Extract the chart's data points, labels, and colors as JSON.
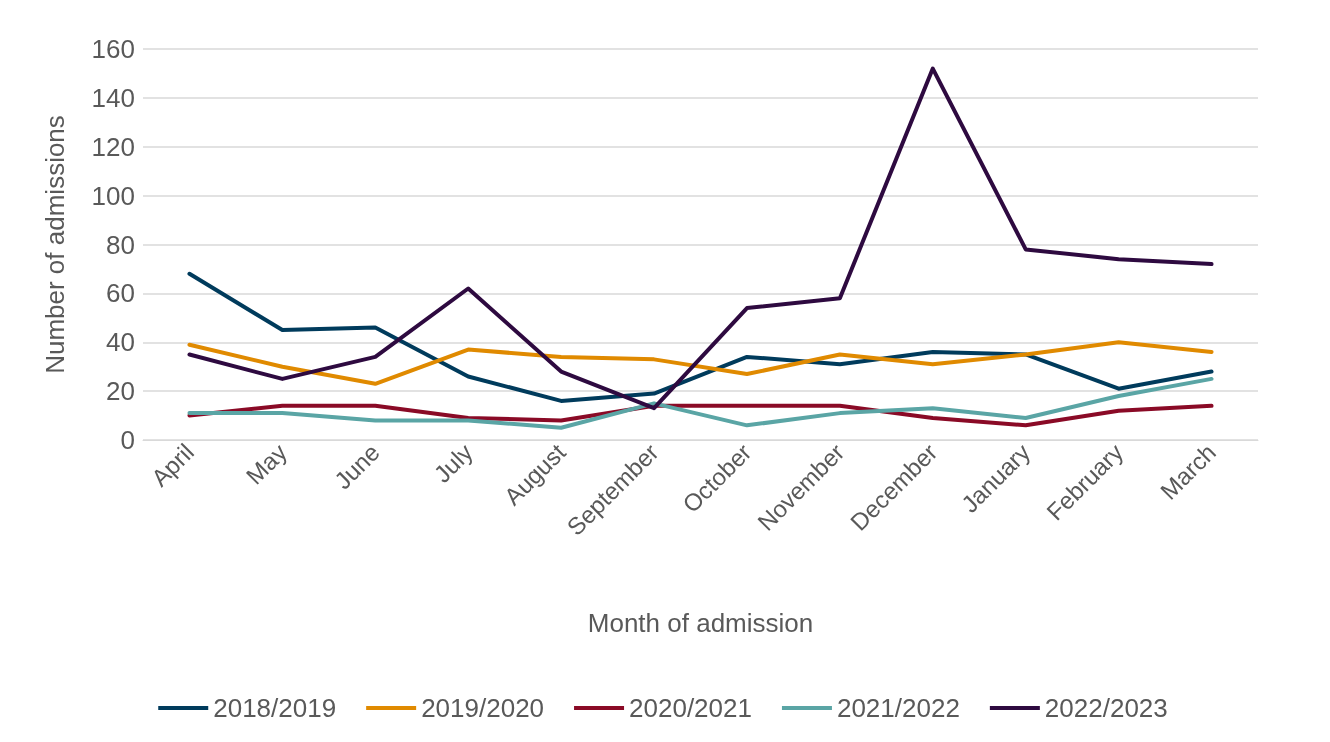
{
  "chart_data": {
    "type": "line",
    "xlabel": "Month of admission",
    "ylabel": "Number of admissions",
    "categories": [
      "April",
      "May",
      "June",
      "July",
      "August",
      "September",
      "October",
      "November",
      "December",
      "January",
      "February",
      "March"
    ],
    "series": [
      {
        "name": "2018/2019",
        "color": "#003b5c",
        "values": [
          68,
          45,
          46,
          26,
          16,
          19,
          34,
          31,
          36,
          35,
          21,
          28
        ]
      },
      {
        "name": "2019/2020",
        "color": "#e08a00",
        "values": [
          39,
          30,
          23,
          37,
          34,
          33,
          27,
          35,
          31,
          35,
          40,
          36
        ]
      },
      {
        "name": "2020/2021",
        "color": "#8a0a26",
        "values": [
          10,
          14,
          14,
          9,
          8,
          14,
          14,
          14,
          9,
          6,
          12,
          14
        ]
      },
      {
        "name": "2021/2022",
        "color": "#5aa5a5",
        "values": [
          11,
          11,
          8,
          8,
          5,
          15,
          6,
          11,
          13,
          9,
          18,
          25
        ]
      },
      {
        "name": "2022/2023",
        "color": "#2e0a40",
        "values": [
          35,
          25,
          34,
          62,
          28,
          13,
          54,
          58,
          152,
          78,
          74,
          72
        ]
      }
    ],
    "ylim": [
      0,
      160
    ],
    "yticks": [
      0,
      20,
      40,
      60,
      80,
      100,
      120,
      140,
      160
    ],
    "grid": "y",
    "legend": "bottom",
    "marker": "none",
    "line_style": "solid"
  }
}
